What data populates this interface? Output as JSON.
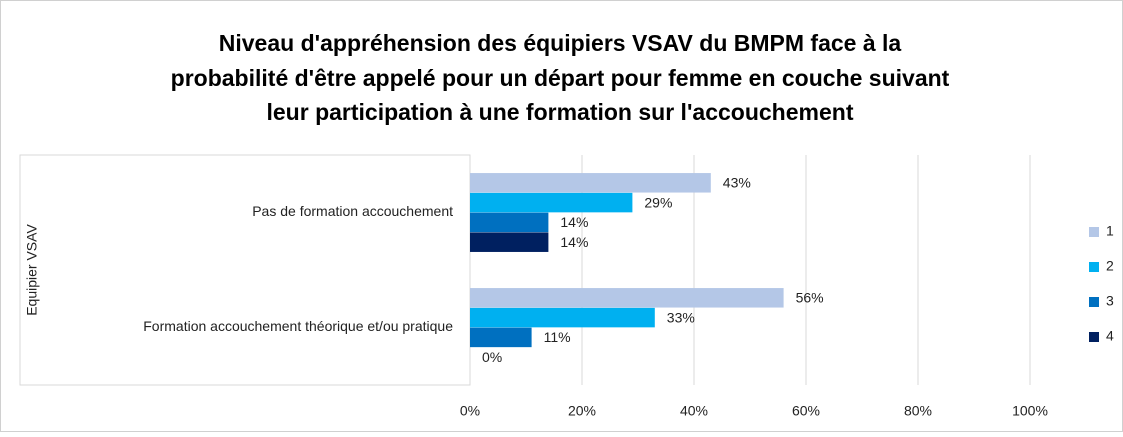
{
  "chart_data": {
    "type": "hbar",
    "title": [
      "Niveau d'appréhension des équipiers VSAV du BMPM face à la",
      "probabilité d'être appelé pour un départ pour femme en couche suivant",
      "leur participation à une formation sur l'accouchement"
    ],
    "y_label": "Equipier VSAV",
    "categories": [
      "Pas de formation accouchement",
      "Formation accouchement théorique et/ou pratique"
    ],
    "series": [
      {
        "name": "1",
        "color": "#b4c7e7",
        "values": [
          43,
          56
        ],
        "value_labels": [
          "43%",
          "56%"
        ]
      },
      {
        "name": "2",
        "color": "#00b0f0",
        "values": [
          29,
          33
        ],
        "value_labels": [
          "29%",
          "33%"
        ]
      },
      {
        "name": "3",
        "color": "#0070c0",
        "values": [
          14,
          11
        ],
        "value_labels": [
          "14%",
          "11%"
        ]
      },
      {
        "name": "4",
        "color": "#002060",
        "values": [
          14,
          0
        ],
        "value_labels": [
          "14%",
          "0%"
        ]
      }
    ],
    "xlim": [
      0,
      100
    ],
    "xticks": [
      {
        "value": 0,
        "label": "0%"
      },
      {
        "value": 20,
        "label": "20%"
      },
      {
        "value": 40,
        "label": "40%"
      },
      {
        "value": 60,
        "label": "60%"
      },
      {
        "value": 80,
        "label": "80%"
      },
      {
        "value": 100,
        "label": "100%"
      }
    ],
    "grid": true,
    "legend": "right"
  }
}
